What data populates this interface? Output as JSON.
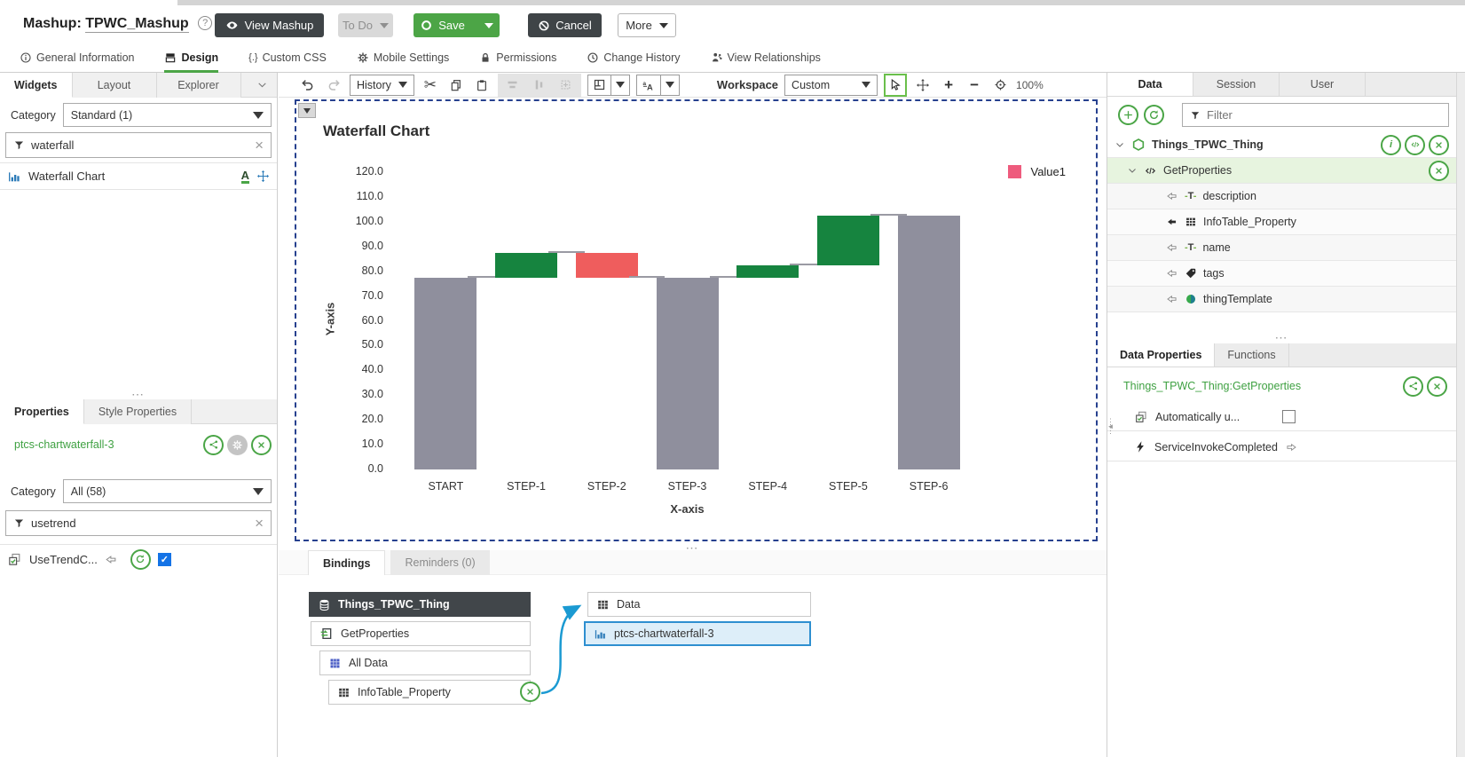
{
  "icons": {
    "cut": "✂",
    "clear": "×",
    "ellipsis": "⋯",
    "plus": "+",
    "minus": "−",
    "check": "✓",
    "help": "?",
    "css_braces": "{.}",
    "code": "</>",
    "ttype": "T"
  },
  "header": {
    "title_label": "Mashup:",
    "title_value": "TPWC_Mashup",
    "buttons": {
      "view_mashup": "View Mashup",
      "todo": "To Do",
      "save": "Save",
      "cancel": "Cancel",
      "more": "More"
    }
  },
  "nav": {
    "tabs": [
      {
        "label": "General Information"
      },
      {
        "label": "Design"
      },
      {
        "label": "Custom CSS"
      },
      {
        "label": "Mobile Settings"
      },
      {
        "label": "Permissions"
      },
      {
        "label": "Change History"
      },
      {
        "label": "View Relationships"
      }
    ]
  },
  "left_panel": {
    "tabs": [
      "Widgets",
      "Layout",
      "Explorer"
    ],
    "category_label": "Category",
    "category_value": "Standard (1)",
    "filter_value": "waterfall",
    "widget_item": "Waterfall Chart",
    "properties_tabs": [
      "Properties",
      "Style Properties"
    ],
    "widget_id": "ptcs-chartwaterfall-3",
    "category2_label": "Category",
    "category2_value": "All (58)",
    "filter2_value": "usetrend",
    "property_item": "UseTrendC..."
  },
  "toolbar": {
    "history_label": "History",
    "workspace_label": "Workspace",
    "workspace_value": "Custom",
    "zoom_level": "100%"
  },
  "chart_data": {
    "type": "bar",
    "subtype": "waterfall",
    "title": "Waterfall Chart",
    "xlabel": "X-axis",
    "ylabel": "Y-axis",
    "categories": [
      "START",
      "STEP-1",
      "STEP-2",
      "STEP-3",
      "STEP-4",
      "STEP-5",
      "STEP-6"
    ],
    "bars": [
      {
        "label": "START",
        "start": 0,
        "end": 77.5,
        "kind": "total"
      },
      {
        "label": "STEP-1",
        "start": 77.5,
        "end": 87.5,
        "kind": "increase"
      },
      {
        "label": "STEP-2",
        "start": 87.5,
        "end": 77.2,
        "kind": "decrease"
      },
      {
        "label": "STEP-3",
        "start": 0,
        "end": 77.2,
        "kind": "total"
      },
      {
        "label": "STEP-4",
        "start": 77.2,
        "end": 82.3,
        "kind": "increase"
      },
      {
        "label": "STEP-5",
        "start": 82.3,
        "end": 102.3,
        "kind": "increase"
      },
      {
        "label": "STEP-6",
        "start": 0,
        "end": 102.3,
        "kind": "total"
      }
    ],
    "ylim": [
      0,
      120
    ],
    "ytick_step": 10,
    "grid": false,
    "legend_position": "top-right",
    "legend": [
      {
        "label": "Value1",
        "color": "#ee5b7d"
      }
    ],
    "colors": {
      "total": "#8f8f9d",
      "increase": "#16843f",
      "decrease": "#ef5d5d"
    },
    "connector_color": "#9a9aa3"
  },
  "bindings": {
    "tabs": [
      "Bindings",
      "Reminders (0)"
    ],
    "source_nodes": [
      {
        "label": "Things_TPWC_Thing"
      },
      {
        "label": "GetProperties"
      },
      {
        "label": "All Data"
      },
      {
        "label": "InfoTable_Property"
      }
    ],
    "target_nodes": [
      {
        "label": "Data"
      },
      {
        "label": "ptcs-chartwaterfall-3"
      }
    ]
  },
  "right_panel": {
    "tabs": [
      "Data",
      "Session",
      "User"
    ],
    "filter_placeholder": "Filter",
    "tree": {
      "root": "Things_TPWC_Thing",
      "service": "GetProperties",
      "properties": [
        {
          "label": "description"
        },
        {
          "label": "InfoTable_Property"
        },
        {
          "label": "name"
        },
        {
          "label": "tags"
        },
        {
          "label": "thingTemplate"
        }
      ]
    },
    "section_tabs": [
      "Data Properties",
      "Functions"
    ],
    "service_ref": "Things_TPWC_Thing:GetProperties",
    "rows": [
      {
        "label": "Automatically u..."
      },
      {
        "label": "ServiceInvokeCompleted"
      }
    ]
  }
}
